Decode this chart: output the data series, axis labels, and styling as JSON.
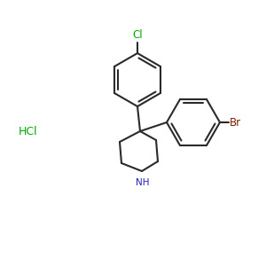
{
  "bg_color": "#ffffff",
  "bond_color": "#2a2a2a",
  "bond_width": 1.5,
  "Cl_color": "#00aa00",
  "Br_color": "#7a2000",
  "NH_color": "#2222bb",
  "HCl_color": "#00aa00",
  "HCl_text": "HCl",
  "Cl_text": "Cl",
  "Br_text": "Br",
  "NH_text": "NH"
}
